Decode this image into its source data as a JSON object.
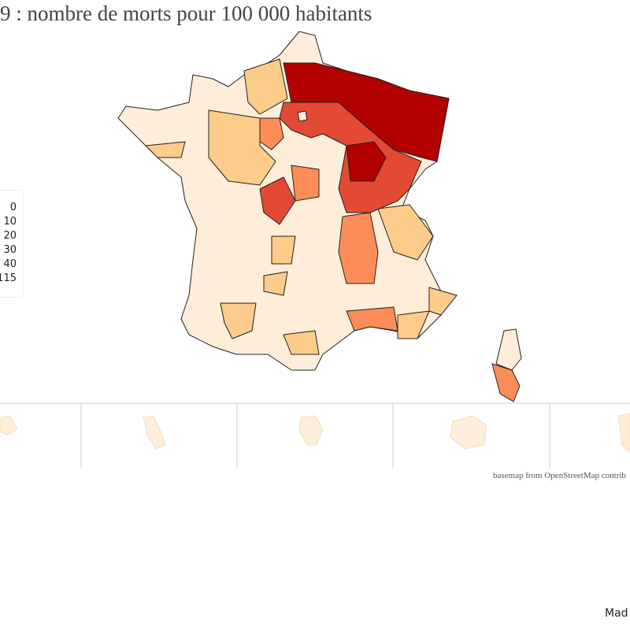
{
  "title": "9 : nombre de morts pour 100 000 habitants",
  "palette": [
    "#feedd8",
    "#fdcc8a",
    "#fc8d59",
    "#e34a33",
    "#b30000"
  ],
  "base_color": "#feedd8",
  "legend": {
    "items": [
      "0",
      "10",
      "20",
      "30",
      "40",
      "115"
    ]
  },
  "credit": "basemap from OpenStreetMap contrib",
  "made": "Mad"
}
